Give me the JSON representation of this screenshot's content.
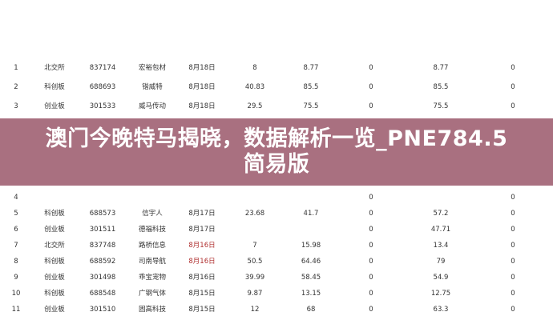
{
  "banner": {
    "title": "澳门今晚特马揭晓，数据解析一览_PNE784.5简易版",
    "background": "#a86d7e"
  },
  "table": {
    "rows": [
      {
        "idx": "1",
        "board": "北交所",
        "code": "837174",
        "name": "宏裕包材",
        "date": "8月18日",
        "price": "8",
        "c7": "8.77",
        "c8": "0",
        "c9": "8.77",
        "c10": "0",
        "date_red": false
      },
      {
        "idx": "2",
        "board": "科创板",
        "code": "688693",
        "name": "锴威特",
        "date": "8月18日",
        "price": "40.83",
        "c7": "85.5",
        "c8": "0",
        "c9": "85.5",
        "c10": "0",
        "date_red": false
      },
      {
        "idx": "3",
        "board": "创业板",
        "code": "301533",
        "name": "威马传动",
        "date": "8月18日",
        "price": "29.5",
        "c7": "75.5",
        "c8": "0",
        "c9": "75.5",
        "c10": "0",
        "date_red": false
      },
      {
        "idx": "4",
        "board": "",
        "code": "",
        "name": "",
        "date": "",
        "price": "",
        "c7": "",
        "c8": "0",
        "c9": "",
        "c10": "0",
        "date_red": false
      },
      {
        "idx": "5",
        "board": "科创板",
        "code": "688573",
        "name": "信宇人",
        "date": "8月17日",
        "price": "23.68",
        "c7": "41.7",
        "c8": "0",
        "c9": "57.2",
        "c10": "0",
        "date_red": false
      },
      {
        "idx": "6",
        "board": "创业板",
        "code": "301511",
        "name": "德福科技",
        "date": "8月17日",
        "price": "",
        "c7": "",
        "c8": "0",
        "c9": "47.71",
        "c10": "0",
        "date_red": false
      },
      {
        "idx": "7",
        "board": "北交所",
        "code": "837748",
        "name": "路桥信息",
        "date": "8月16日",
        "price": "7",
        "c7": "15.98",
        "c8": "0",
        "c9": "13.4",
        "c10": "0",
        "date_red": true
      },
      {
        "idx": "8",
        "board": "科创板",
        "code": "688592",
        "name": "司南导航",
        "date": "8月16日",
        "price": "50.5",
        "c7": "64.46",
        "c8": "0",
        "c9": "79",
        "c10": "0",
        "date_red": true
      },
      {
        "idx": "9",
        "board": "创业板",
        "code": "301498",
        "name": "乖宝宠物",
        "date": "8月16日",
        "price": "39.99",
        "c7": "58.45",
        "c8": "0",
        "c9": "54.9",
        "c10": "0",
        "date_red": false
      },
      {
        "idx": "10",
        "board": "科创板",
        "code": "688548",
        "name": "广钢气体",
        "date": "8月15日",
        "price": "9.87",
        "c7": "13.15",
        "c8": "0",
        "c9": "12.75",
        "c10": "0",
        "date_red": false
      },
      {
        "idx": "11",
        "board": "创业板",
        "code": "301510",
        "name": "固高科技",
        "date": "8月15日",
        "price": "12",
        "c7": "68",
        "c8": "0",
        "c9": "63.3",
        "c10": "0",
        "date_red": false
      }
    ]
  }
}
